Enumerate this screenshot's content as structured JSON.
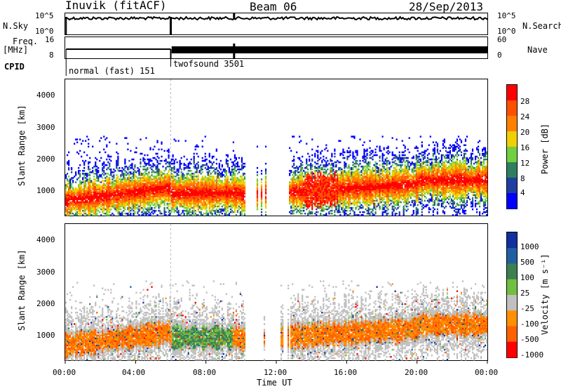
{
  "header": {
    "station": "Inuvik (fitACF)",
    "beam": "Beam 06",
    "date": "28/Sep/2013"
  },
  "top_panels": {
    "nsky_label": "N.Sky",
    "nsky_ticks": [
      "10^5",
      "10^0"
    ],
    "nsearch_label": "N.Search",
    "nsearch_ticks": [
      "10^5",
      "10^0"
    ],
    "freq_label": "Freq.",
    "freq_unit": "[MHz]",
    "freq_ticks": [
      "16",
      "8"
    ],
    "nave_label": "Nave",
    "nave_ticks": [
      "60",
      "0"
    ],
    "cpid_label": "CPID",
    "cpid_segments": [
      {
        "name": "normal (fast) 151",
        "start_hour": 0,
        "end_hour": 6
      },
      {
        "name": "twofsound 3501",
        "start_hour": 6,
        "end_hour": 24
      }
    ]
  },
  "chart_data": [
    {
      "type": "heatmap",
      "name": "power",
      "ylabel": "Slant Range [km]",
      "yticks": [
        "1000",
        "2000",
        "3000",
        "4000"
      ],
      "ylim": [
        200,
        4500
      ],
      "colorbar_label": "Power [dB]",
      "colorbar_ticks": [
        "4",
        "8",
        "12",
        "16",
        "20",
        "24",
        "28"
      ],
      "colors": [
        "#0000ff",
        "#1f3fa0",
        "#2f7f5f",
        "#70d040",
        "#f0d000",
        "#ff8000",
        "#ff5000",
        "#ff0000"
      ]
    },
    {
      "type": "heatmap",
      "name": "velocity",
      "ylabel": "Slant Range [km]",
      "yticks": [
        "1000",
        "2000",
        "3000",
        "4000"
      ],
      "ylim": [
        200,
        4500
      ],
      "colorbar_label": "Velocity [m s⁻¹]",
      "colorbar_ticks": [
        "1000",
        "500",
        "100",
        "25",
        "-25",
        "-100",
        "-500",
        "-1000"
      ],
      "colors": [
        "#1030a0",
        "#2060a0",
        "#3d8050",
        "#70c040",
        "#c0c0c0",
        "#ff9000",
        "#ff6000",
        "#ff0000"
      ]
    }
  ],
  "xaxis": {
    "label": "Time UT",
    "ticks": [
      "00:00",
      "04:00",
      "08:00",
      "12:00",
      "16:00",
      "20:00",
      "00:00"
    ]
  }
}
